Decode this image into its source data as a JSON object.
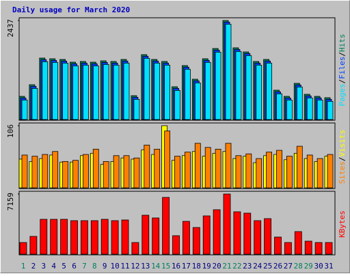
{
  "chart_data": [
    {
      "type": "bar",
      "title": "Daily usage for March 2020",
      "ylim": [
        0,
        2437
      ],
      "yticks": [
        2437
      ],
      "legend_separator": "/",
      "series": [
        {
          "name": "Hits",
          "color": "#00805c",
          "values": [
            571,
            857,
            1513,
            1496,
            1479,
            1412,
            1429,
            1412,
            1445,
            1429,
            1479,
            588,
            1597,
            1479,
            1429,
            807,
            1328,
            992,
            1496,
            1748,
            2437,
            1765,
            1664,
            1429,
            1479,
            723,
            571,
            891,
            622,
            571,
            538
          ]
        },
        {
          "name": "Files",
          "color": "#0040ff",
          "values": [
            531,
            817,
            1473,
            1456,
            1439,
            1372,
            1389,
            1372,
            1405,
            1389,
            1439,
            548,
            1557,
            1439,
            1389,
            767,
            1288,
            952,
            1456,
            1708,
            2397,
            1725,
            1624,
            1389,
            1439,
            683,
            531,
            851,
            582,
            531,
            498
          ]
        },
        {
          "name": "Pages",
          "color": "#00e0ff",
          "values": [
            481,
            767,
            1423,
            1406,
            1389,
            1322,
            1339,
            1322,
            1355,
            1339,
            1389,
            498,
            1507,
            1389,
            1339,
            717,
            1238,
            902,
            1406,
            1658,
            2347,
            1675,
            1574,
            1339,
            1389,
            633,
            481,
            801,
            532,
            481,
            448
          ]
        }
      ]
    },
    {
      "type": "bar",
      "ylim": [
        0,
        106
      ],
      "yticks": [
        106
      ],
      "legend_separator": "/",
      "series": [
        {
          "name": "Visits",
          "color": "#ffff00",
          "values": [
            49,
            45,
            50,
            56,
            44,
            44,
            55,
            59,
            40,
            45,
            51,
            49,
            65,
            57,
            106,
            47,
            55,
            62,
            54,
            59,
            62,
            50,
            54,
            43,
            55,
            57,
            48,
            59,
            50,
            45,
            54
          ]
        },
        {
          "name": "Sites",
          "color": "#ff8000",
          "values": [
            56,
            54,
            57,
            62,
            45,
            47,
            57,
            66,
            45,
            55,
            55,
            51,
            73,
            66,
            97,
            54,
            61,
            76,
            69,
            66,
            76,
            55,
            58,
            50,
            61,
            64,
            54,
            71,
            56,
            50,
            57
          ]
        }
      ]
    },
    {
      "type": "bar",
      "ylim": [
        0,
        7159
      ],
      "yticks": [
        7159
      ],
      "categories": [
        "1",
        "2",
        "3",
        "4",
        "5",
        "6",
        "7",
        "8",
        "9",
        "10",
        "11",
        "12",
        "13",
        "14",
        "15",
        "16",
        "17",
        "18",
        "19",
        "20",
        "21",
        "22",
        "23",
        "24",
        "25",
        "26",
        "27",
        "28",
        "29",
        "30",
        "31"
      ],
      "category_colors": [
        "#00805c",
        "#000080",
        "#000080",
        "#000080",
        "#000080",
        "#000080",
        "#00805c",
        "#00805c",
        "#000080",
        "#000080",
        "#000080",
        "#000080",
        "#000080",
        "#00805c",
        "#00805c",
        "#000080",
        "#000080",
        "#000080",
        "#000080",
        "#000080",
        "#00805c",
        "#00805c",
        "#000080",
        "#000080",
        "#000080",
        "#000080",
        "#000080",
        "#00805c",
        "#00805c",
        "#000080",
        "#000080"
      ],
      "series": [
        {
          "name": "KBytes",
          "color": "#ff0000",
          "values": [
            1384,
            2115,
            4149,
            4149,
            4149,
            3988,
            3988,
            3988,
            4149,
            3988,
            4070,
            1384,
            4637,
            4312,
            6756,
            2197,
            3906,
            3174,
            4556,
            5290,
            7159,
            5046,
            4883,
            3988,
            4230,
            2034,
            1384,
            2685,
            1546,
            1384,
            1384
          ]
        }
      ]
    }
  ]
}
